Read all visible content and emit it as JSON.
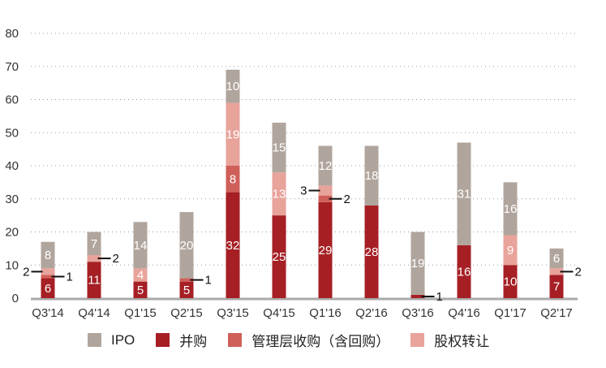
{
  "chart_data": {
    "type": "bar",
    "stacked": true,
    "categories": [
      "Q3'14",
      "Q4'14",
      "Q1'15",
      "Q2'15",
      "Q3'15",
      "Q4'15",
      "Q1'16",
      "Q2'16",
      "Q3'16",
      "Q4'16",
      "Q1'17",
      "Q2'17"
    ],
    "series": [
      {
        "name": "并购",
        "color": "#a51f24",
        "values": [
          6,
          11,
          5,
          5,
          32,
          25,
          29,
          28,
          1,
          16,
          10,
          7
        ]
      },
      {
        "name": "管理层收购（含回购）",
        "color": "#cf5f59",
        "values": [
          1,
          0,
          0,
          1,
          8,
          0,
          2,
          0,
          0,
          0,
          0,
          0
        ]
      },
      {
        "name": "股权转让",
        "color": "#e8a39b",
        "values": [
          2,
          2,
          4,
          0,
          19,
          13,
          3,
          0,
          0,
          0,
          9,
          2
        ]
      },
      {
        "name": "IPO",
        "color": "#b0a59d",
        "values": [
          8,
          7,
          14,
          20,
          10,
          15,
          12,
          18,
          19,
          31,
          16,
          6
        ]
      }
    ],
    "ylim": [
      0,
      80
    ],
    "yticks": [
      0,
      10,
      20,
      30,
      40,
      50,
      60,
      70,
      80
    ],
    "grid": "horizontal dotted",
    "legend": "bottom"
  }
}
